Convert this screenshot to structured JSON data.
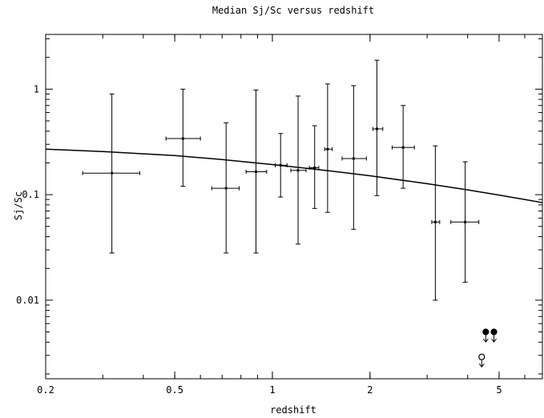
{
  "chart_data": {
    "type": "scatter",
    "title": "Median Sj/Sc versus redshift",
    "xlabel": "redshift",
    "ylabel": "Sj/Sc",
    "xscale": "log",
    "yscale": "log",
    "xlim": [
      0.2,
      6.8
    ],
    "ylim": [
      0.0018,
      3.3
    ],
    "x_ticks": [
      {
        "value": 0.2,
        "label": "0.2"
      },
      {
        "value": 0.5,
        "label": "0.5"
      },
      {
        "value": 1,
        "label": "1"
      },
      {
        "value": 2,
        "label": "2"
      },
      {
        "value": 5,
        "label": "5"
      }
    ],
    "y_ticks": [
      {
        "value": 0.01,
        "label": "0.01"
      },
      {
        "value": 0.1,
        "label": "0.1"
      },
      {
        "value": 1,
        "label": "1"
      }
    ],
    "grid": false,
    "legend": "none",
    "points": [
      {
        "x": 0.32,
        "xlo": 0.26,
        "xhi": 0.39,
        "y": 0.16,
        "ylo": 0.028,
        "yhi": 0.9
      },
      {
        "x": 0.53,
        "xlo": 0.47,
        "xhi": 0.6,
        "y": 0.34,
        "ylo": 0.12,
        "yhi": 1.0
      },
      {
        "x": 0.72,
        "xlo": 0.65,
        "xhi": 0.79,
        "y": 0.115,
        "ylo": 0.028,
        "yhi": 0.48
      },
      {
        "x": 0.89,
        "xlo": 0.83,
        "xhi": 0.96,
        "y": 0.165,
        "ylo": 0.028,
        "yhi": 0.98
      },
      {
        "x": 1.06,
        "xlo": 1.02,
        "xhi": 1.11,
        "y": 0.19,
        "ylo": 0.095,
        "yhi": 0.38
      },
      {
        "x": 1.2,
        "xlo": 1.14,
        "xhi": 1.27,
        "y": 0.17,
        "ylo": 0.034,
        "yhi": 0.86
      },
      {
        "x": 1.35,
        "xlo": 1.3,
        "xhi": 1.39,
        "y": 0.18,
        "ylo": 0.074,
        "yhi": 0.45
      },
      {
        "x": 1.48,
        "xlo": 1.45,
        "xhi": 1.53,
        "y": 0.27,
        "ylo": 0.068,
        "yhi": 1.12
      },
      {
        "x": 1.78,
        "xlo": 1.64,
        "xhi": 1.95,
        "y": 0.22,
        "ylo": 0.047,
        "yhi": 1.08
      },
      {
        "x": 2.1,
        "xlo": 2.04,
        "xhi": 2.19,
        "y": 0.42,
        "ylo": 0.098,
        "yhi": 1.88
      },
      {
        "x": 2.53,
        "xlo": 2.34,
        "xhi": 2.74,
        "y": 0.28,
        "ylo": 0.115,
        "yhi": 0.7
      },
      {
        "x": 3.18,
        "xlo": 3.1,
        "xhi": 3.28,
        "y": 0.055,
        "ylo": 0.01,
        "yhi": 0.29
      },
      {
        "x": 3.93,
        "xlo": 3.55,
        "xhi": 4.33,
        "y": 0.055,
        "ylo": 0.0148,
        "yhi": 0.205
      }
    ],
    "upper_limits": [
      {
        "x": 4.55,
        "y": 0.005,
        "marker": "filled-circle"
      },
      {
        "x": 4.82,
        "y": 0.005,
        "marker": "filled-circle"
      },
      {
        "x": 4.42,
        "y": 0.0029,
        "marker": "open-circle"
      }
    ],
    "curve": {
      "x": [
        0.2,
        0.3,
        0.5,
        0.7,
        1.0,
        1.5,
        2.0,
        3.0,
        4.0,
        5.0,
        6.0,
        6.8
      ],
      "y": [
        0.27,
        0.256,
        0.235,
        0.215,
        0.193,
        0.168,
        0.151,
        0.127,
        0.111,
        0.099,
        0.09,
        0.084
      ]
    }
  }
}
